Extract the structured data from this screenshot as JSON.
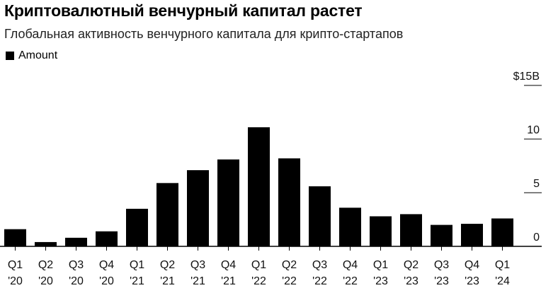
{
  "header": {
    "title": "Криптовалютный венчурный капитал растет",
    "subtitle": "Глобальная активность венчурного капитала для крипто-стартапов"
  },
  "legend": {
    "label": "Amount"
  },
  "chart_data": {
    "type": "bar",
    "categories": [
      [
        "Q1",
        "'20"
      ],
      [
        "Q2",
        "'20"
      ],
      [
        "Q3",
        "'20"
      ],
      [
        "Q4",
        "'20"
      ],
      [
        "Q1",
        "'21"
      ],
      [
        "Q2",
        "'21"
      ],
      [
        "Q3",
        "'21"
      ],
      [
        "Q4",
        "'21"
      ],
      [
        "Q1",
        "'22"
      ],
      [
        "Q2",
        "'22"
      ],
      [
        "Q3",
        "'22"
      ],
      [
        "Q4",
        "'22"
      ],
      [
        "Q1",
        "'23"
      ],
      [
        "Q2",
        "'23"
      ],
      [
        "Q3",
        "'23"
      ],
      [
        "Q4",
        "'23"
      ],
      [
        "Q1",
        "'24"
      ]
    ],
    "series": [
      {
        "name": "Amount",
        "values": [
          1.6,
          0.4,
          0.8,
          1.4,
          3.5,
          5.9,
          7.1,
          8.1,
          11.1,
          8.2,
          5.6,
          3.6,
          2.8,
          3.0,
          2.0,
          2.1,
          2.6
        ],
        "color": "#000000"
      }
    ],
    "ylim": [
      0,
      15
    ],
    "y_ticks": [
      "0",
      "5",
      "10",
      "$15B"
    ],
    "y_tick_values": [
      0,
      5,
      10,
      15
    ],
    "y_axis_position": "right",
    "grid": false
  }
}
